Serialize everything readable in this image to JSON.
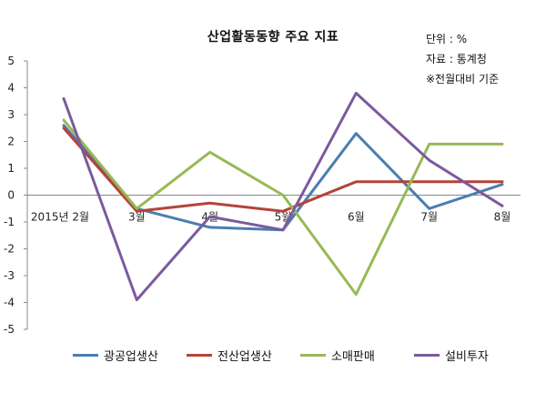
{
  "header": {
    "title": "산업활동동향 주요 지표",
    "unit": "단위 : %",
    "source": "자료 : 통계청",
    "basis": "※전월대비 기준"
  },
  "chart_data": {
    "type": "line",
    "title": "산업활동동향 주요 지표",
    "categories": [
      "2015년 2월",
      "3월",
      "4월",
      "5월",
      "6월",
      "7월",
      "8월"
    ],
    "ylim": [
      -5,
      5
    ],
    "yticks": [
      5,
      4,
      3,
      2,
      1,
      0,
      -1,
      -2,
      -3,
      -4,
      -5
    ],
    "legend_position": "bottom",
    "series": [
      {
        "name": "광공업생산",
        "color": "#4a7eb0",
        "values": [
          2.6,
          -0.5,
          -1.2,
          -1.3,
          2.3,
          -0.5,
          0.4
        ]
      },
      {
        "name": "전산업생산",
        "color": "#b5433a",
        "values": [
          2.5,
          -0.6,
          -0.3,
          -0.6,
          0.5,
          0.5,
          0.5
        ]
      },
      {
        "name": "소매판매",
        "color": "#98b954",
        "values": [
          2.8,
          -0.5,
          1.6,
          0.0,
          -3.7,
          1.9,
          1.9
        ]
      },
      {
        "name": "설비투자",
        "color": "#7b5a9e",
        "values": [
          3.6,
          -3.9,
          -0.8,
          -1.3,
          3.8,
          1.3,
          -0.4
        ]
      }
    ]
  }
}
